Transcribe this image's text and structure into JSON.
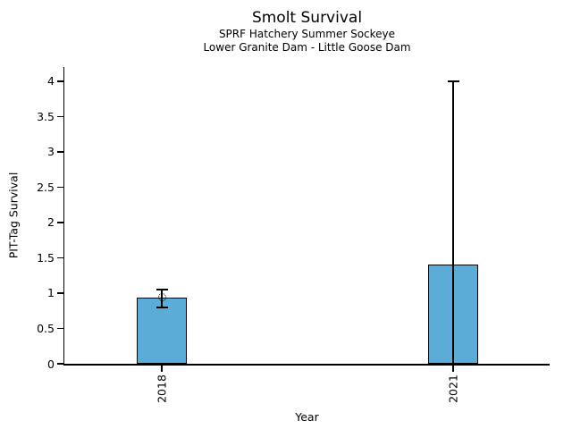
{
  "chart_data": {
    "type": "bar",
    "title": "Smolt Survival",
    "subtitle1": "SPRF Hatchery Summer Sockeye",
    "subtitle2": "Lower Granite Dam - Little Goose Dam",
    "xlabel": "Year",
    "ylabel": "PIT-Tag Survival",
    "categories": [
      "2018",
      "2021"
    ],
    "values": [
      0.94,
      1.4
    ],
    "error_bars": [
      {
        "low": 0.8,
        "high": 1.05,
        "cap_low": true,
        "cap_high": true
      },
      {
        "low": 0.0,
        "high": 4.0,
        "cap_low": false,
        "cap_high": true
      }
    ],
    "marker": {
      "category": "2018",
      "value": 0.94,
      "style": "open-circle-dotted"
    },
    "yticks": [
      "0",
      "0.5",
      "1",
      "1.5",
      "2",
      "2.5",
      "3",
      "3.5",
      "4"
    ],
    "ylim": [
      0,
      4.2
    ],
    "bar_color": "#5BACD6",
    "edge_color": "#000000",
    "axis_color": "#000000",
    "grid": false,
    "legend_position": "none"
  }
}
